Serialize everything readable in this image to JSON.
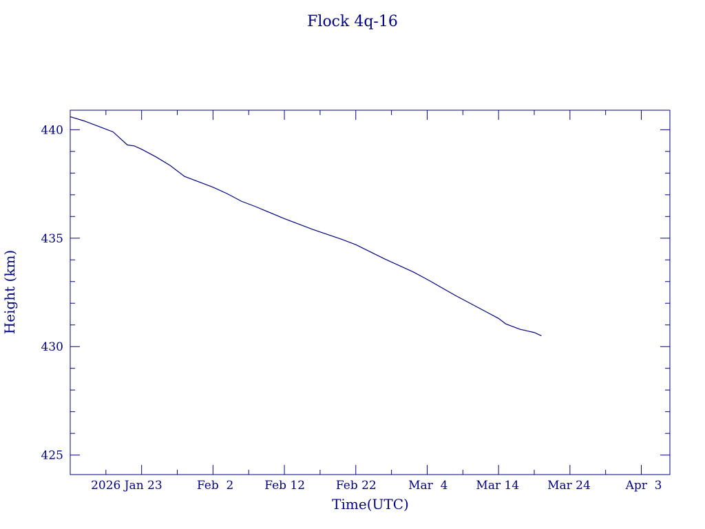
{
  "chart_data": {
    "type": "line",
    "title": "Flock 4q-16",
    "xlabel": "Time(UTC)",
    "ylabel": "Height (km)",
    "x_range": [
      "2026-01-13",
      "2026-04-07"
    ],
    "ylim": [
      424.1,
      440.9
    ],
    "grid": false,
    "color": "#000080",
    "yticks": [
      425,
      430,
      435,
      440
    ],
    "ytick_labels": [
      "425",
      "430",
      "435",
      "440"
    ],
    "xticks": [
      "2026-01-23",
      "2026-02-02",
      "2026-02-12",
      "2026-02-22",
      "2026-03-04",
      "2026-03-14",
      "2026-03-24",
      "2026-04-03"
    ],
    "xtick_labels": [
      "2026 Jan 23",
      "Feb  2",
      "Feb 12",
      "Feb 22",
      "Mar  4",
      "Mar 14",
      "Mar 24",
      "Apr  3"
    ],
    "series": [
      {
        "x": [
          "2026-01-13",
          "2026-01-15",
          "2026-01-17",
          "2026-01-19",
          "2026-01-20",
          "2026-01-21",
          "2026-01-22",
          "2026-01-23",
          "2026-01-25",
          "2026-01-27",
          "2026-01-29",
          "2026-01-31",
          "2026-02-02",
          "2026-02-04",
          "2026-02-06",
          "2026-02-08",
          "2026-02-12",
          "2026-02-16",
          "2026-02-20",
          "2026-02-22",
          "2026-02-26",
          "2026-03-02",
          "2026-03-04",
          "2026-03-08",
          "2026-03-12",
          "2026-03-14",
          "2026-03-15",
          "2026-03-17",
          "2026-03-19",
          "2026-03-20"
        ],
        "y": [
          440.6,
          440.4,
          440.15,
          439.9,
          439.6,
          439.3,
          439.25,
          439.1,
          438.75,
          438.35,
          437.85,
          437.6,
          437.35,
          437.05,
          436.7,
          436.45,
          435.9,
          435.4,
          434.95,
          434.7,
          434.05,
          433.45,
          433.1,
          432.35,
          431.65,
          431.3,
          431.05,
          430.8,
          430.65,
          430.5
        ]
      }
    ]
  }
}
